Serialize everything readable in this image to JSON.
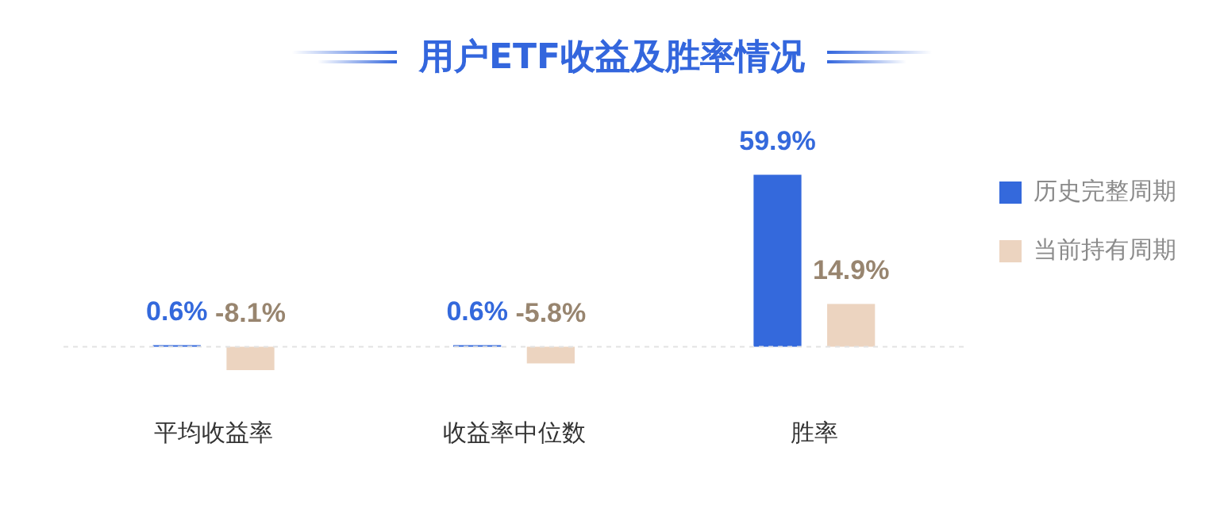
{
  "chart_data": {
    "type": "bar",
    "title": "用户ETF收益及胜率情况",
    "categories": [
      "平均收益率",
      "收益率中位数",
      "胜率"
    ],
    "series": [
      {
        "name": "历史完整周期",
        "color": "#3469dc",
        "values": [
          0.6,
          0.6,
          59.9
        ],
        "value_labels": [
          "0.6%",
          "0.6%",
          "59.9%"
        ]
      },
      {
        "name": "当前持有周期",
        "color": "#ecd4c0",
        "values": [
          -8.1,
          -5.8,
          14.9
        ],
        "value_labels": [
          "-8.1%",
          "-5.8%",
          "14.9%"
        ]
      }
    ],
    "ref_lines": [
      {
        "axis": "y",
        "value": 0,
        "color": "#e3e3e3",
        "line_style": "dashed"
      }
    ],
    "legend": "top right",
    "grid": false
  }
}
